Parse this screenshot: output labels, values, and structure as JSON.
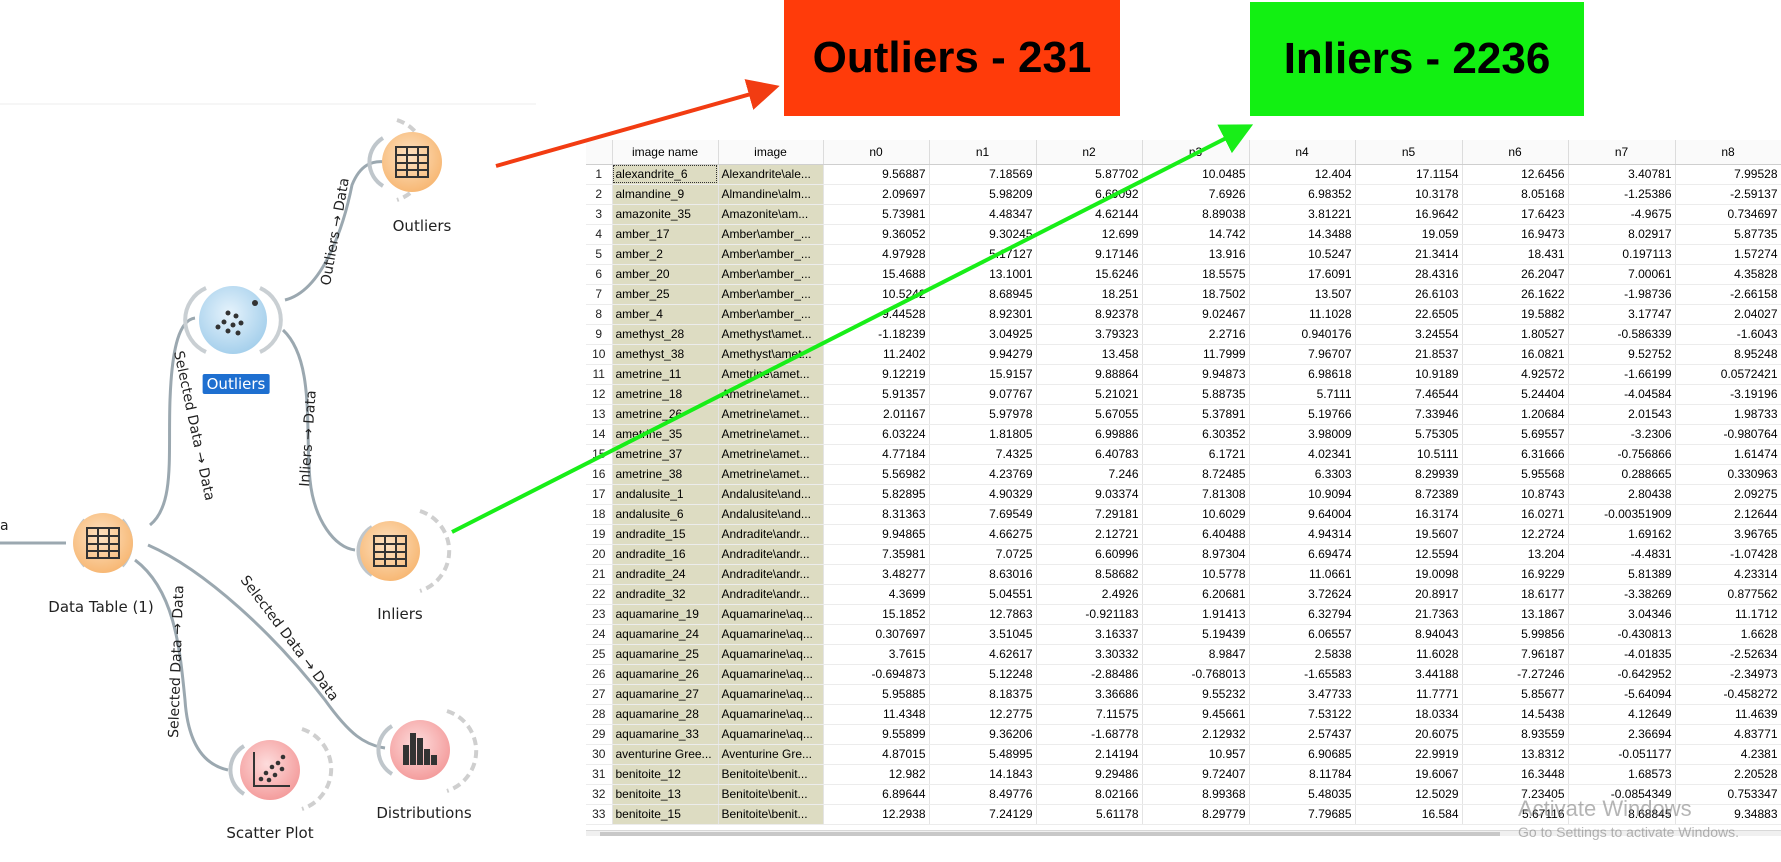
{
  "workflow": {
    "nodes": {
      "outliers_widget": "Outliers",
      "outliers_table": "Outliers",
      "inliers_table": "Inliers",
      "data_table": "Data Table (1)",
      "scatter_plot": "Scatter Plot",
      "distributions": "Distributions"
    },
    "links": {
      "outliers_out": "Outliers → Data",
      "selected_in": "Selected Data → Data",
      "inliers_out": "Inliers → Data",
      "to_scatter": "Selected Data → Data",
      "to_distributions": "Selected Data → Data",
      "incoming_fragment": "a"
    },
    "icons": {
      "table": "table-icon",
      "outlier": "scatter-dots-icon",
      "scatter": "scatter-plot-icon",
      "distributions": "bar-chart-icon"
    },
    "colors": {
      "table_node": "#f9c58a",
      "outlier_node": "#a8d4f0",
      "viz_node": "#f8a8a8",
      "link": "#9ba8b0",
      "selected_label": "#1e6fd0"
    }
  },
  "banners": {
    "outliers": "Outliers - 231",
    "inliers": "Inliers - 2236",
    "outliers_color": "#ff3b0a",
    "inliers_color": "#12f012"
  },
  "annotations": {
    "outliers_arrow_color": "#f23c12",
    "inliers_arrow_color": "#18ee18"
  },
  "table": {
    "columns": [
      "",
      "image name",
      "image",
      "n0",
      "n1",
      "n2",
      "n3",
      "n4",
      "n5",
      "n6",
      "n7",
      "n8"
    ],
    "rows": [
      [
        "1",
        "alexandrite_6",
        "Alexandrite\\ale...",
        "9.56887",
        "7.18569",
        "5.87702",
        "10.0485",
        "12.404",
        "17.1154",
        "12.6456",
        "3.40781",
        "7.99528"
      ],
      [
        "2",
        "almandine_9",
        "Almandine\\alm...",
        "2.09697",
        "5.98209",
        "6.69092",
        "7.6926",
        "6.98352",
        "10.3178",
        "8.05168",
        "-1.25386",
        "-2.59137"
      ],
      [
        "3",
        "amazonite_35",
        "Amazonite\\am...",
        "5.73981",
        "4.48347",
        "4.62144",
        "8.89038",
        "3.81221",
        "16.9642",
        "17.6423",
        "-4.9675",
        "0.734697"
      ],
      [
        "4",
        "amber_17",
        "Amber\\amber_...",
        "9.36052",
        "9.30245",
        "12.699",
        "14.742",
        "14.3488",
        "19.059",
        "16.9473",
        "8.02917",
        "5.87735"
      ],
      [
        "5",
        "amber_2",
        "Amber\\amber_...",
        "4.97928",
        "5.17127",
        "9.17146",
        "13.916",
        "10.5247",
        "21.3414",
        "18.431",
        "0.197113",
        "1.57274"
      ],
      [
        "6",
        "amber_20",
        "Amber\\amber_...",
        "15.4688",
        "13.1001",
        "15.6246",
        "18.5575",
        "17.6091",
        "28.4316",
        "26.2047",
        "7.00061",
        "4.35828"
      ],
      [
        "7",
        "amber_25",
        "Amber\\amber_...",
        "10.5242",
        "8.68945",
        "18.251",
        "18.7502",
        "13.507",
        "26.6103",
        "26.1622",
        "-1.98736",
        "-2.66158"
      ],
      [
        "8",
        "amber_4",
        "Amber\\amber_...",
        "9.44528",
        "8.92301",
        "8.92378",
        "9.02467",
        "11.1028",
        "22.6505",
        "19.5882",
        "3.17747",
        "2.04027"
      ],
      [
        "9",
        "amethyst_28",
        "Amethyst\\amet...",
        "-1.18239",
        "3.04925",
        "3.79323",
        "2.2716",
        "0.940176",
        "3.24554",
        "1.80527",
        "-0.586339",
        "-1.6043"
      ],
      [
        "10",
        "amethyst_38",
        "Amethyst\\amet...",
        "11.2402",
        "9.94279",
        "13.458",
        "11.7999",
        "7.96707",
        "21.8537",
        "16.0821",
        "9.52752",
        "8.95248"
      ],
      [
        "11",
        "ametrine_11",
        "Ametrine\\amet...",
        "9.12219",
        "15.9157",
        "9.88864",
        "9.94873",
        "6.98618",
        "10.9189",
        "4.92572",
        "-1.66199",
        "0.0572421"
      ],
      [
        "12",
        "ametrine_18",
        "Ametrine\\amet...",
        "5.91357",
        "9.07767",
        "5.21021",
        "5.88735",
        "5.7111",
        "7.46544",
        "5.24404",
        "-4.04584",
        "-3.19196"
      ],
      [
        "13",
        "ametrine_26",
        "Ametrine\\amet...",
        "2.01167",
        "5.97978",
        "5.67055",
        "5.37891",
        "5.19766",
        "7.33946",
        "1.20684",
        "2.01543",
        "1.98733"
      ],
      [
        "14",
        "ametrine_35",
        "Ametrine\\amet...",
        "6.03224",
        "1.81805",
        "6.99886",
        "6.30352",
        "3.98009",
        "5.75305",
        "5.69557",
        "-3.2306",
        "-0.980764"
      ],
      [
        "15",
        "ametrine_37",
        "Ametrine\\amet...",
        "4.77184",
        "7.4325",
        "6.40783",
        "6.1721",
        "4.02341",
        "10.5111",
        "6.31666",
        "-0.756866",
        "1.61474"
      ],
      [
        "16",
        "ametrine_38",
        "Ametrine\\amet...",
        "5.56982",
        "4.23769",
        "7.246",
        "8.72485",
        "6.3303",
        "8.29939",
        "5.95568",
        "0.288665",
        "0.330963"
      ],
      [
        "17",
        "andalusite_1",
        "Andalusite\\and...",
        "5.82895",
        "4.90329",
        "9.03374",
        "7.81308",
        "10.9094",
        "8.72389",
        "10.8743",
        "2.80438",
        "2.09275"
      ],
      [
        "18",
        "andalusite_6",
        "Andalusite\\and...",
        "8.31363",
        "7.69549",
        "7.29181",
        "10.6029",
        "9.64004",
        "16.3174",
        "16.0271",
        "-0.00351909",
        "2.12644"
      ],
      [
        "19",
        "andradite_15",
        "Andradite\\andr...",
        "9.94865",
        "4.66275",
        "2.12721",
        "6.40488",
        "4.94314",
        "19.5607",
        "12.2724",
        "1.69162",
        "3.96765"
      ],
      [
        "20",
        "andradite_16",
        "Andradite\\andr...",
        "7.35981",
        "7.0725",
        "6.60996",
        "8.97304",
        "6.69474",
        "12.5594",
        "13.204",
        "-4.4831",
        "-1.07428"
      ],
      [
        "21",
        "andradite_24",
        "Andradite\\andr...",
        "3.48277",
        "8.63016",
        "8.58682",
        "10.5778",
        "11.0661",
        "19.0098",
        "16.9229",
        "5.81389",
        "4.23314"
      ],
      [
        "22",
        "andradite_32",
        "Andradite\\andr...",
        "4.3699",
        "5.04551",
        "2.4926",
        "6.20681",
        "3.72624",
        "20.8917",
        "18.6177",
        "-3.38269",
        "0.877562"
      ],
      [
        "23",
        "aquamarine_19",
        "Aquamarine\\aq...",
        "15.1852",
        "12.7863",
        "-0.921183",
        "1.91413",
        "6.32794",
        "21.7363",
        "13.1867",
        "3.04346",
        "11.1712"
      ],
      [
        "24",
        "aquamarine_24",
        "Aquamarine\\aq...",
        "0.307697",
        "3.51045",
        "3.16337",
        "5.19439",
        "6.06557",
        "8.94043",
        "5.99856",
        "-0.430813",
        "1.6628"
      ],
      [
        "25",
        "aquamarine_25",
        "Aquamarine\\aq...",
        "3.7615",
        "4.62617",
        "3.30332",
        "8.9847",
        "2.5838",
        "11.6028",
        "7.96187",
        "-4.01835",
        "-2.52634"
      ],
      [
        "26",
        "aquamarine_26",
        "Aquamarine\\aq...",
        "-0.694873",
        "5.12248",
        "-2.88486",
        "-0.768013",
        "-1.65583",
        "3.44188",
        "-7.27246",
        "-0.642952",
        "-2.34973"
      ],
      [
        "27",
        "aquamarine_27",
        "Aquamarine\\aq...",
        "5.95885",
        "8.18375",
        "3.36686",
        "9.55232",
        "3.47733",
        "11.7771",
        "5.85677",
        "-5.64094",
        "-0.458272"
      ],
      [
        "28",
        "aquamarine_28",
        "Aquamarine\\aq...",
        "11.4348",
        "12.2775",
        "7.11575",
        "9.45661",
        "7.53122",
        "18.0334",
        "14.5438",
        "4.12649",
        "11.4639"
      ],
      [
        "29",
        "aquamarine_33",
        "Aquamarine\\aq...",
        "9.55899",
        "9.36206",
        "-1.68778",
        "2.12932",
        "2.57437",
        "20.6075",
        "8.93559",
        "2.36694",
        "4.83771"
      ],
      [
        "30",
        "aventurine Gree...",
        "Aventurine Gre...",
        "4.87015",
        "5.48995",
        "2.14194",
        "10.957",
        "6.90685",
        "22.9919",
        "13.8312",
        "-0.051177",
        "4.2381"
      ],
      [
        "31",
        "benitoite_12",
        "Benitoite\\benit...",
        "12.982",
        "14.1843",
        "9.29486",
        "9.72407",
        "8.11784",
        "19.6067",
        "16.3448",
        "1.68573",
        "2.20528"
      ],
      [
        "32",
        "benitoite_13",
        "Benitoite\\benit...",
        "6.89644",
        "8.49776",
        "8.02166",
        "8.99368",
        "5.48035",
        "12.5029",
        "7.23405",
        "-0.0854349",
        "0.753347"
      ],
      [
        "33",
        "benitoite_15",
        "Benitoite\\benit...",
        "12.2938",
        "7.24129",
        "5.61178",
        "8.29779",
        "7.79685",
        "16.584",
        "5.67116",
        "8.68845",
        "9.34883"
      ]
    ]
  },
  "watermark": {
    "title": "Activate Windows",
    "subtitle": "Go to Settings to activate Windows."
  }
}
